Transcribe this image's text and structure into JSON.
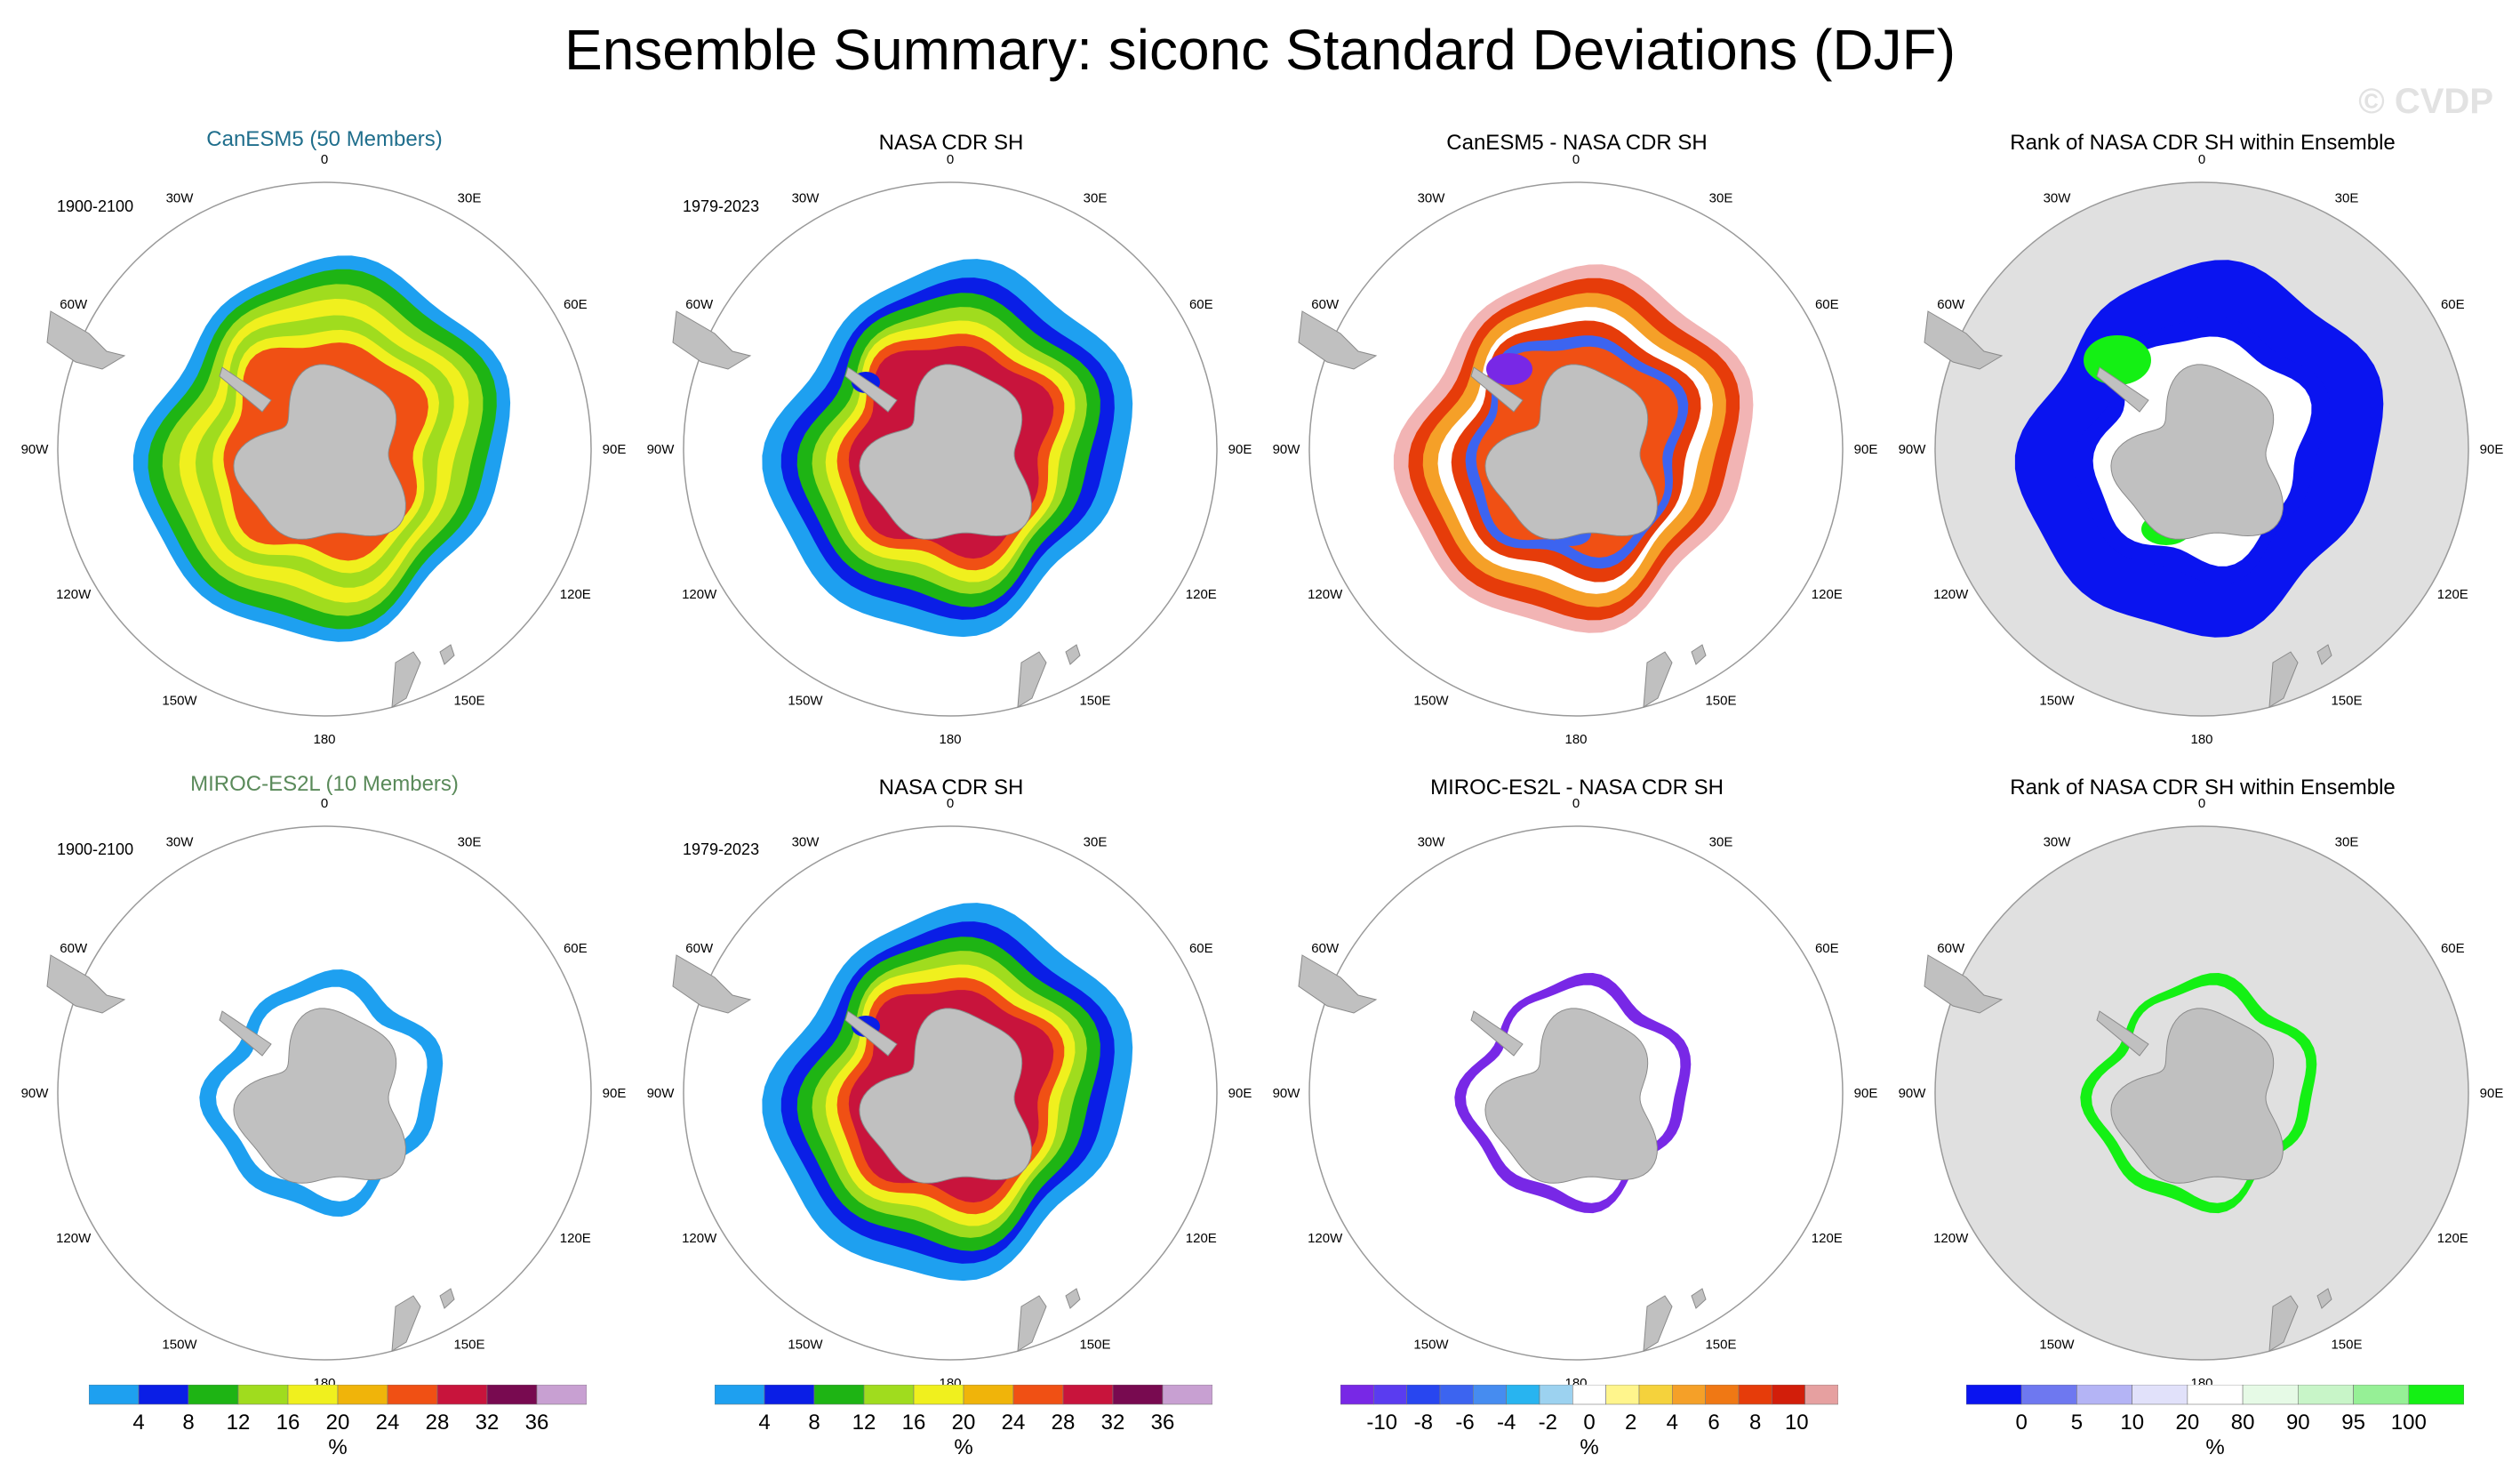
{
  "title": "Ensemble Summary: siconc Standard Deviations (DJF)",
  "watermark": "© CVDP",
  "longitude_labels": [
    "0",
    "30E",
    "60E",
    "90E",
    "120E",
    "150E",
    "180",
    "150W",
    "120W",
    "90W",
    "60W",
    "30W"
  ],
  "rows": [
    {
      "model_title": "CanESM5 (50 Members)",
      "model_color": "#1f6e8c",
      "model_period": "1900-2100",
      "obs_title": "NASA CDR SH",
      "obs_period": "1979-2023",
      "diff_title": "CanESM5 - NASA CDR SH",
      "rank_title": "Rank of NASA CDR SH within Ensemble",
      "model_field": "full",
      "diff_field": "full",
      "rank_field": "full"
    },
    {
      "model_title": "MIROC-ES2L (10 Members)",
      "model_color": "#5a8a5a",
      "model_period": "1900-2100",
      "obs_title": "NASA CDR SH",
      "obs_period": "1979-2023",
      "diff_title": "MIROC-ES2L - NASA CDR SH",
      "rank_title": "Rank of NASA CDR SH within Ensemble",
      "model_field": "narrow",
      "diff_field": "narrow",
      "rank_field": "narrow"
    }
  ],
  "colorbars": {
    "stddev": {
      "unit": "%",
      "ticks": [
        "4",
        "8",
        "12",
        "16",
        "20",
        "24",
        "28",
        "32",
        "36"
      ],
      "colors": [
        "#1ea0f0",
        "#0a1ee6",
        "#1eb414",
        "#a0dc1e",
        "#f0f01e",
        "#f0b40a",
        "#f05014",
        "#c8143c",
        "#780a50",
        "#c8a0d2"
      ]
    },
    "diff": {
      "unit": "%",
      "ticks": [
        "-10",
        "-8",
        "-6",
        "-4",
        "-2",
        "0",
        "2",
        "4",
        "6",
        "8",
        "10"
      ],
      "colors": [
        "#7828e6",
        "#5a3cf0",
        "#2846f0",
        "#3c64f0",
        "#468cf0",
        "#28b4f0",
        "#9cd2f0",
        "#ffffff",
        "#fff58c",
        "#f5d23c",
        "#f5a028",
        "#f07814",
        "#e63c0a",
        "#d21e0a",
        "#e6a0a0"
      ]
    },
    "rank": {
      "unit": "%",
      "ticks": [
        "0",
        "5",
        "10",
        "20",
        "80",
        "90",
        "95",
        "100"
      ],
      "colors": [
        "#0a14f0",
        "#6e78f0",
        "#b4b4f5",
        "#e1e1fa",
        "#ffffff",
        "#e6fae6",
        "#c8f5c8",
        "#96f096",
        "#14f014"
      ]
    }
  },
  "chart_data": [
    {
      "type": "heatmap",
      "title": "CanESM5 (50 Members)",
      "subtitle": "1900-2100",
      "projection": "south polar stereographic",
      "variable": "siconc standard deviation",
      "unit": "%",
      "range": [
        0,
        40
      ]
    },
    {
      "type": "heatmap",
      "title": "NASA CDR SH",
      "subtitle": "1979-2023",
      "projection": "south polar stereographic",
      "variable": "siconc standard deviation",
      "unit": "%",
      "range": [
        0,
        40
      ]
    },
    {
      "type": "heatmap",
      "title": "CanESM5 - NASA CDR SH",
      "projection": "south polar stereographic",
      "variable": "difference",
      "unit": "%",
      "range": [
        -10,
        10
      ]
    },
    {
      "type": "heatmap",
      "title": "Rank of NASA CDR SH within Ensemble",
      "projection": "south polar stereographic",
      "variable": "rank",
      "unit": "%",
      "range": [
        0,
        100
      ]
    },
    {
      "type": "heatmap",
      "title": "MIROC-ES2L (10 Members)",
      "subtitle": "1900-2100",
      "projection": "south polar stereographic",
      "variable": "siconc standard deviation",
      "unit": "%",
      "range": [
        0,
        40
      ]
    },
    {
      "type": "heatmap",
      "title": "NASA CDR SH",
      "subtitle": "1979-2023",
      "projection": "south polar stereographic",
      "variable": "siconc standard deviation",
      "unit": "%",
      "range": [
        0,
        40
      ]
    },
    {
      "type": "heatmap",
      "title": "MIROC-ES2L - NASA CDR SH",
      "projection": "south polar stereographic",
      "variable": "difference",
      "unit": "%",
      "range": [
        -10,
        10
      ]
    },
    {
      "type": "heatmap",
      "title": "Rank of NASA CDR SH within Ensemble",
      "projection": "south polar stereographic",
      "variable": "rank",
      "unit": "%",
      "range": [
        0,
        100
      ]
    }
  ]
}
